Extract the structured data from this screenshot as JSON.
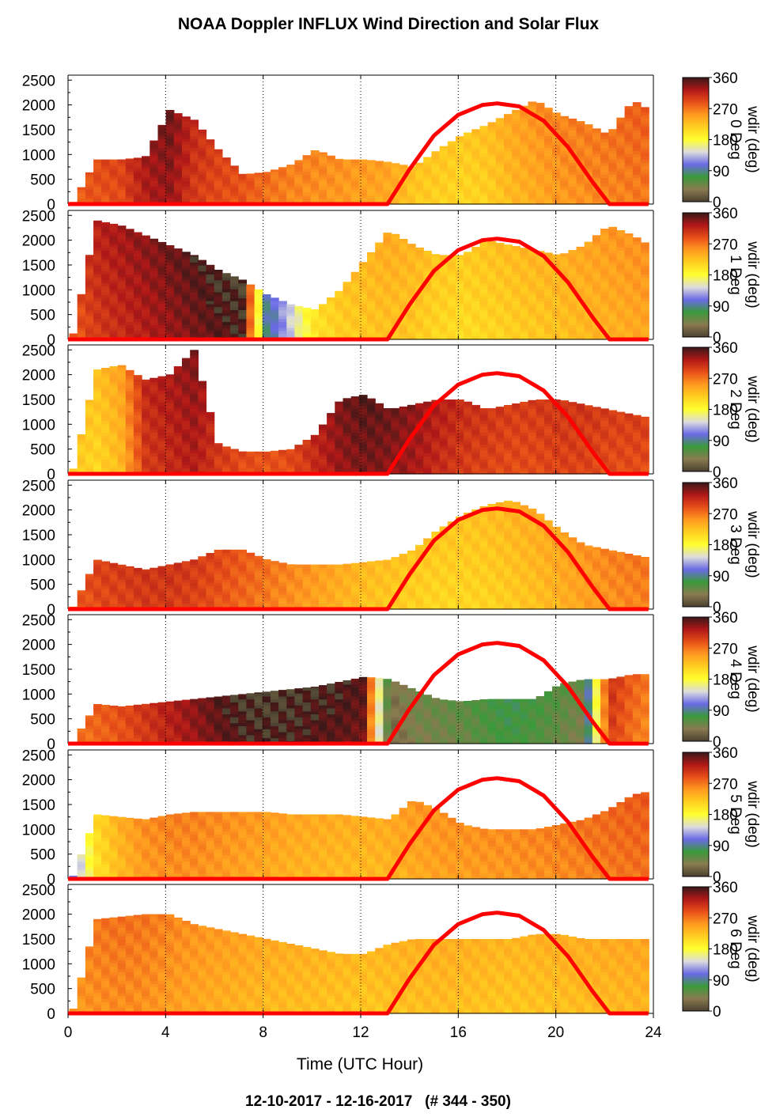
{
  "title": "NOAA Doppler INFLUX Wind Direction and Solar Flux",
  "footer": "12-10-2017 - 12-16-2017   (# 344 - 350)",
  "colors": {
    "solar_curve": "#ff0000",
    "colormap": [
      "#4a4030",
      "#8a7a50",
      "#3a9a3a",
      "#6a6ae6",
      "#dcdcdc",
      "#ffff30",
      "#ffd020",
      "#ff9a20",
      "#e85018",
      "#b01818",
      "#3a1818"
    ]
  },
  "chart_data": {
    "type": "heatmap",
    "xlabel": "Time (UTC Hour)",
    "x_ticks": [
      "0",
      "4",
      "8",
      "12",
      "16",
      "20",
      "24"
    ],
    "xlim": [
      0,
      24
    ],
    "y_ticks": [
      "0",
      "500",
      "1000",
      "1500",
      "2000",
      "2500"
    ],
    "ylim": [
      0,
      2600
    ],
    "grid": "dotted vertical lines at 4, 8, 12, 16, 20",
    "colorbar": {
      "label": "wdir (deg)",
      "ticks": [
        "0",
        "90",
        "180",
        "270",
        "360"
      ],
      "range": [
        0,
        360
      ]
    },
    "solar_flux": {
      "x": [
        0,
        13.1,
        14.0,
        15.0,
        16.0,
        17.0,
        17.6,
        18.5,
        19.5,
        20.5,
        21.5,
        22.2,
        23.8
      ],
      "y": [
        0,
        0,
        700,
        1380,
        1800,
        2000,
        2030,
        1970,
        1680,
        1150,
        450,
        0,
        0
      ]
    },
    "panels": [
      {
        "day_label": "0 Deg",
        "depth": [
          0,
          900,
          900,
          950,
          1900,
          1700,
          1100,
          600,
          650,
          800,
          1100,
          900,
          900,
          850,
          750,
          1100,
          1400,
          1600,
          1850,
          2100,
          1800,
          1650,
          1400,
          2100,
          1800
        ],
        "dirs": [
          280,
          285,
          290,
          320,
          330,
          300,
          290,
          285,
          270,
          260,
          255,
          250,
          245,
          240,
          220,
          215,
          210,
          215,
          230,
          240,
          250,
          255,
          260,
          265,
          270
        ]
      },
      {
        "day_label": "1 Deg",
        "depth": [
          0,
          2400,
          2300,
          2100,
          1900,
          1700,
          1400,
          1200,
          900,
          700,
          600,
          1000,
          1600,
          2200,
          1900,
          1700,
          1700,
          2000,
          1900,
          1800,
          1700,
          1900,
          2300,
          2100,
          1800
        ],
        "dirs": [
          280,
          300,
          310,
          320,
          330,
          340,
          350,
          355,
          80,
          140,
          200,
          215,
          220,
          225,
          220,
          210,
          205,
          210,
          215,
          220,
          225,
          230,
          235,
          240,
          245
        ]
      },
      {
        "day_label": "2 Deg",
        "depth": [
          0,
          2100,
          2200,
          1900,
          2000,
          2500,
          600,
          450,
          450,
          500,
          800,
          1500,
          1600,
          1300,
          1400,
          1500,
          1500,
          1300,
          1400,
          1500,
          1500,
          1400,
          1300,
          1200,
          1100
        ],
        "dirs": [
          220,
          210,
          230,
          300,
          310,
          320,
          300,
          290,
          285,
          290,
          310,
          330,
          340,
          335,
          325,
          310,
          300,
          295,
          290,
          290,
          295,
          295,
          290,
          290,
          290
        ]
      },
      {
        "day_label": "3 Deg",
        "depth": [
          0,
          1000,
          900,
          800,
          900,
          1000,
          1200,
          1200,
          1000,
          900,
          900,
          900,
          950,
          1000,
          1200,
          1600,
          1900,
          2100,
          2200,
          2000,
          1600,
          1300,
          1200,
          1100,
          1000
        ],
        "dirs": [
          280,
          290,
          295,
          300,
          300,
          295,
          285,
          275,
          265,
          255,
          245,
          235,
          225,
          220,
          215,
          210,
          210,
          212,
          218,
          225,
          235,
          245,
          255,
          260,
          265
        ]
      },
      {
        "day_label": "4 Deg",
        "depth": [
          0,
          800,
          750,
          800,
          850,
          900,
          950,
          1000,
          1050,
          1100,
          1150,
          1250,
          1350,
          1300,
          1100,
          900,
          850,
          900,
          900,
          900,
          1200,
          1300,
          1300,
          1400,
          1400
        ],
        "dirs": [
          270,
          275,
          285,
          300,
          315,
          330,
          345,
          355,
          358,
          355,
          350,
          348,
          340,
          20,
          40,
          45,
          50,
          60,
          70,
          60,
          50,
          40,
          300,
          270,
          250
        ]
      },
      {
        "day_label": "5 Deg",
        "depth": [
          0,
          1300,
          1250,
          1200,
          1300,
          1350,
          1350,
          1350,
          1350,
          1300,
          1300,
          1300,
          1250,
          1200,
          1600,
          1400,
          1100,
          1000,
          1000,
          1000,
          1100,
          1200,
          1400,
          1700,
          1800
        ],
        "dirs": [
          110,
          200,
          230,
          250,
          255,
          255,
          250,
          245,
          240,
          235,
          232,
          230,
          230,
          232,
          240,
          245,
          248,
          250,
          252,
          255,
          258,
          262,
          266,
          270,
          272
        ]
      },
      {
        "day_label": "6 Deg",
        "depth": [
          0,
          1900,
          1950,
          2000,
          2000,
          1800,
          1700,
          1600,
          1500,
          1400,
          1300,
          1200,
          1200,
          1400,
          1500,
          1500,
          1500,
          1500,
          1500,
          1600,
          1600,
          1500,
          1500,
          1500,
          1500
        ],
        "dirs": [
          250,
          255,
          258,
          255,
          248,
          242,
          238,
          234,
          230,
          228,
          226,
          224,
          222,
          224,
          226,
          228,
          226,
          224,
          222,
          224,
          226,
          228,
          230,
          232,
          235
        ]
      }
    ]
  }
}
